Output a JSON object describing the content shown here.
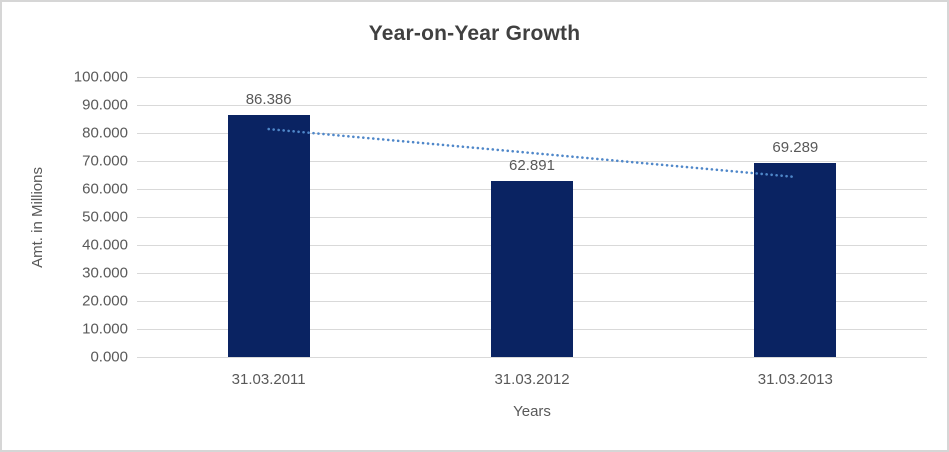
{
  "chart_data": {
    "type": "bar",
    "title": "Year-on-Year Growth",
    "categories": [
      "31.03.2011",
      "31.03.2012",
      "31.03.2013"
    ],
    "values": [
      86.386,
      62.891,
      69.289
    ],
    "data_labels": [
      "86.386",
      "62.891",
      "69.289"
    ],
    "xlabel": "Years",
    "ylabel": "Amt. in Millions",
    "ylim": [
      0,
      100
    ],
    "ytick_labels": [
      "100.000",
      "90.000",
      "80.000",
      "70.000",
      "60.000",
      "50.000",
      "40.000",
      "30.000",
      "20.000",
      "10.000",
      "0.000"
    ],
    "grid": true,
    "legend": false,
    "trendline": {
      "type": "linear",
      "style": "dotted",
      "start_value": 81.4,
      "end_value": 64.3
    },
    "colors": {
      "bar": "#0a2362",
      "trendline": "#4f87c9",
      "gridline": "#d9d9d9",
      "axis_text": "#595959",
      "title_text": "#404040",
      "frame_border": "#d6d6d6",
      "background": "#ffffff"
    }
  }
}
